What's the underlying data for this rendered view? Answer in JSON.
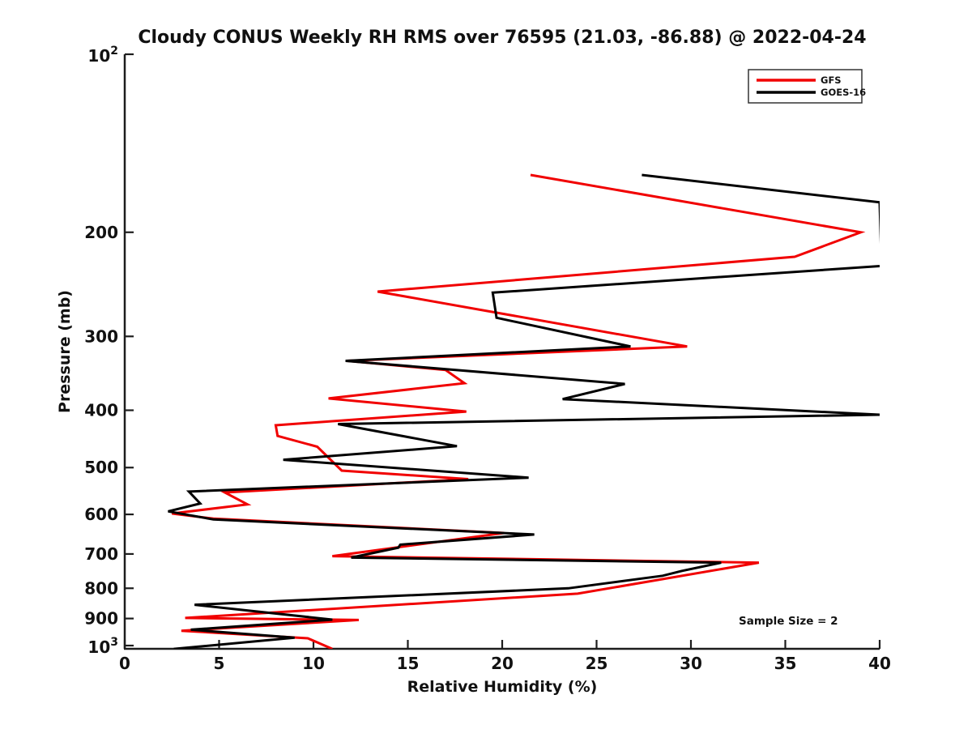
{
  "title": "Cloudy CONUS Weekly RH RMS over 76595 (21.03, -86.88) @ 2022-04-24",
  "annotation": "Sample Size = 2",
  "axis_color": "#1d1d1d",
  "chart_data": {
    "type": "line",
    "title": "Cloudy CONUS Weekly RH RMS over 76595 (21.03, -86.88) @ 2022-04-24",
    "xlabel": "Relative Humidity (%)",
    "ylabel": "Pressure (mb)",
    "xlim": [
      0,
      40
    ],
    "ylim": [
      100,
      1014
    ],
    "y_scale": "log-inverted",
    "grid": false,
    "legend_position": "top-right",
    "x_ticks": [
      0,
      5,
      10,
      15,
      20,
      25,
      30,
      35,
      40
    ],
    "y_ticks": [
      {
        "value": 100,
        "label": "10^2"
      },
      {
        "value": 200,
        "label": "200"
      },
      {
        "value": 300,
        "label": "300"
      },
      {
        "value": 400,
        "label": "400"
      },
      {
        "value": 500,
        "label": "500"
      },
      {
        "value": 600,
        "label": "600"
      },
      {
        "value": 700,
        "label": "700"
      },
      {
        "value": 800,
        "label": "800"
      },
      {
        "value": 900,
        "label": "900"
      },
      {
        "value": 1000,
        "label": "10^3"
      }
    ],
    "series": [
      {
        "name": "GFS",
        "color": "#f10000",
        "points_rh_pressure": [
          [
            21.5,
            160
          ],
          [
            39.0,
            200
          ],
          [
            35.5,
            220
          ],
          [
            13.4,
            252
          ],
          [
            29.8,
            312
          ],
          [
            11.8,
            330
          ],
          [
            17.0,
            342
          ],
          [
            18.0,
            360
          ],
          [
            10.8,
            382
          ],
          [
            18.1,
            402
          ],
          [
            8.0,
            424
          ],
          [
            8.1,
            442
          ],
          [
            10.2,
            461
          ],
          [
            11.5,
            506
          ],
          [
            18.2,
            523
          ],
          [
            5.3,
            551
          ],
          [
            6.5,
            577
          ],
          [
            2.5,
            598
          ],
          [
            4.7,
            610
          ],
          [
            20.1,
            645
          ],
          [
            11.0,
            706
          ],
          [
            33.6,
            724
          ],
          [
            24.0,
            817
          ],
          [
            3.2,
            898
          ],
          [
            12.4,
            905
          ],
          [
            3.0,
            944
          ],
          [
            9.7,
            972
          ],
          [
            11.0,
            1013
          ]
        ]
      },
      {
        "name": "GOES-16",
        "color": "#000000",
        "points_rh_pressure": [
          [
            27.4,
            160
          ],
          [
            40.0,
            178
          ],
          [
            40.1,
            228
          ],
          [
            19.5,
            253
          ],
          [
            19.7,
            279
          ],
          [
            26.8,
            312
          ],
          [
            11.7,
            330
          ],
          [
            26.5,
            361
          ],
          [
            23.2,
            383
          ],
          [
            40.0,
            407
          ],
          [
            11.3,
            422
          ],
          [
            17.6,
            460
          ],
          [
            8.4,
            485
          ],
          [
            21.4,
            520
          ],
          [
            3.4,
            549
          ],
          [
            4.0,
            575
          ],
          [
            2.3,
            593
          ],
          [
            4.7,
            612
          ],
          [
            21.7,
            649
          ],
          [
            14.6,
            675
          ],
          [
            14.5,
            683
          ],
          [
            12.0,
            710
          ],
          [
            31.6,
            724
          ],
          [
            29.5,
            748
          ],
          [
            28.5,
            762
          ],
          [
            23.5,
            800
          ],
          [
            3.7,
            853
          ],
          [
            11.0,
            904
          ],
          [
            3.5,
            940
          ],
          [
            9.0,
            970
          ],
          [
            2.6,
            1013
          ]
        ]
      }
    ]
  }
}
